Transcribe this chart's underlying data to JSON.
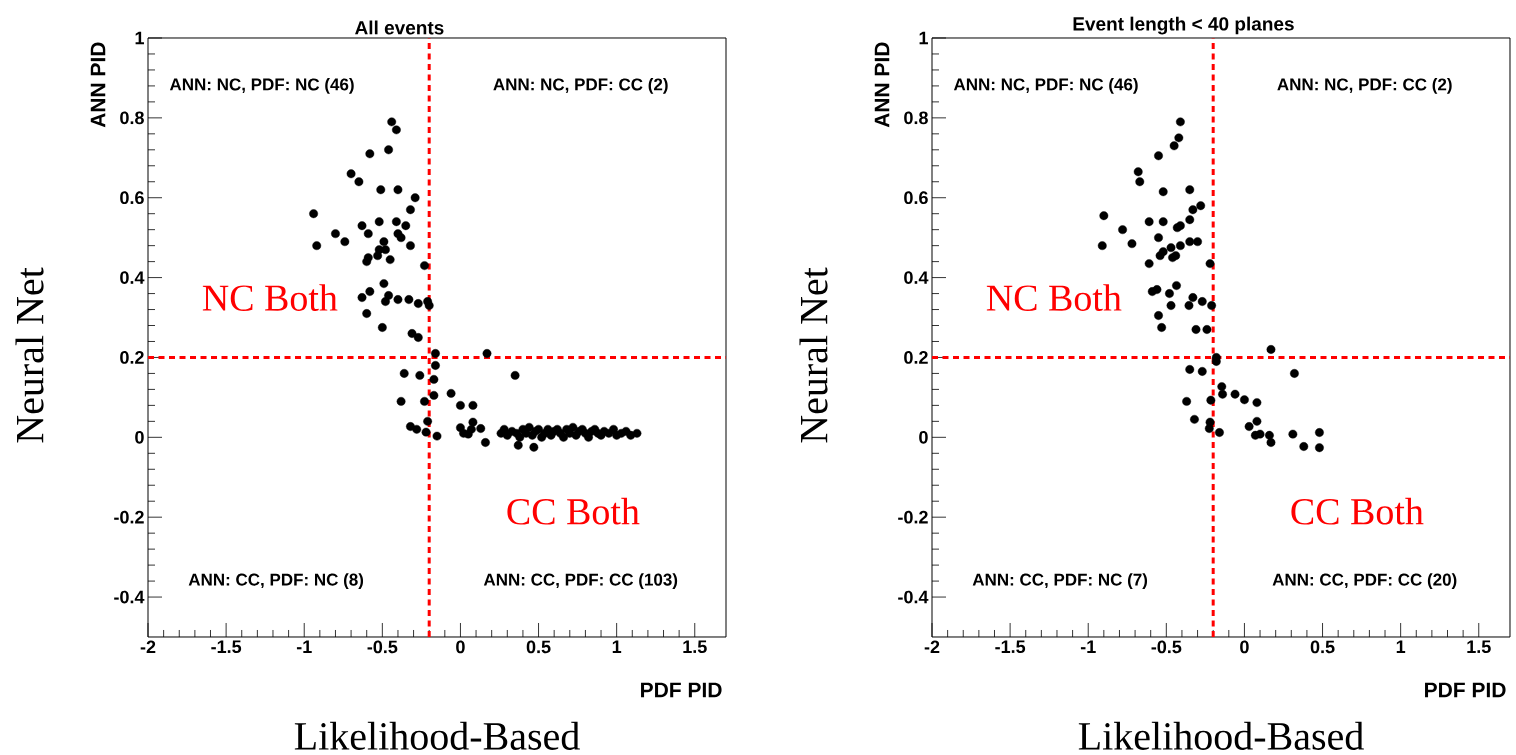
{
  "chart_data": [
    {
      "type": "scatter",
      "title": "All events",
      "xlabel": "PDF PID",
      "ylabel": "ANN PID",
      "color": "#000000",
      "marker": "circle",
      "xlim": [
        -2,
        1.7
      ],
      "ylim": [
        -0.5,
        1
      ],
      "xticks": [
        -2,
        -1.5,
        -1,
        -0.5,
        0,
        0.5,
        1,
        1.5
      ],
      "yticks": [
        -0.4,
        -0.2,
        0,
        0.2,
        0.4,
        0.6,
        0.8,
        1
      ],
      "ref_lines": [
        {
          "axis": "x",
          "value": -0.2,
          "color": "#ff0000",
          "line_style": "dashed"
        },
        {
          "axis": "y",
          "value": 0.2,
          "color": "#ff0000",
          "line_style": "dashed"
        }
      ],
      "annotations": [
        "ANN: NC, PDF: NC  (46)",
        "ANN: NC, PDF: CC  (2)",
        "ANN: CC, PDF: NC  (8)",
        "ANN: CC, PDF: CC  (103)",
        "NC Both",
        "CC Both",
        "Neural Net",
        "Likelihood-Based"
      ],
      "x": [
        -0.44,
        -0.41,
        -0.58,
        -0.46,
        -0.7,
        -0.65,
        -0.51,
        -0.4,
        -0.29,
        -0.32,
        -0.94,
        -0.63,
        -0.52,
        -0.41,
        -0.35,
        -0.8,
        -0.59,
        -0.4,
        -0.74,
        -0.49,
        -0.38,
        -0.92,
        -0.32,
        -0.52,
        -0.48,
        -0.59,
        -0.53,
        -0.45,
        -0.6,
        -0.23,
        -0.49,
        -0.58,
        -0.63,
        -0.46,
        -0.48,
        -0.4,
        -0.33,
        -0.27,
        -0.21,
        -0.2,
        -0.6,
        -0.5,
        -0.31,
        -0.27,
        -0.16,
        0.17,
        -0.16,
        -0.36,
        -0.26,
        -0.17,
        -0.17,
        -0.06,
        -0.38,
        -0.23,
        0.0,
        0.08,
        -0.21,
        -0.32,
        -0.28,
        -0.22,
        -0.15,
        0.35,
        0.0,
        0.08,
        0.13,
        0.05,
        0.07,
        0.02,
        0.16,
        0.26,
        0.28,
        0.3,
        0.33,
        0.36,
        0.38,
        0.4,
        0.42,
        0.44,
        0.46,
        0.48,
        0.5,
        0.52,
        0.54,
        0.56,
        0.58,
        0.6,
        0.62,
        0.64,
        0.66,
        0.68,
        0.7,
        0.72,
        0.74,
        0.76,
        0.78,
        0.8,
        0.82,
        0.84,
        0.86,
        0.88,
        0.9,
        0.92,
        0.95,
        0.98,
        1.0,
        1.03,
        1.06,
        1.09,
        1.13,
        0.37,
        0.47
      ],
      "values": [
        0.79,
        0.77,
        0.71,
        0.72,
        0.66,
        0.64,
        0.62,
        0.62,
        0.6,
        0.57,
        0.56,
        0.53,
        0.54,
        0.54,
        0.53,
        0.51,
        0.51,
        0.51,
        0.49,
        0.49,
        0.5,
        0.48,
        0.48,
        0.47,
        0.47,
        0.45,
        0.455,
        0.445,
        0.44,
        0.43,
        0.385,
        0.365,
        0.35,
        0.355,
        0.34,
        0.345,
        0.345,
        0.335,
        0.34,
        0.33,
        0.31,
        0.275,
        0.26,
        0.25,
        0.21,
        0.21,
        0.18,
        0.16,
        0.155,
        0.145,
        0.105,
        0.11,
        0.09,
        0.09,
        0.08,
        0.08,
        0.04,
        0.027,
        0.02,
        0.013,
        0.003,
        0.155,
        0.024,
        0.038,
        0.022,
        0.008,
        0.02,
        0.01,
        -0.013,
        0.01,
        0.02,
        0.005,
        0.015,
        0.01,
        0.0,
        0.02,
        0.01,
        0.025,
        0.005,
        0.015,
        0.02,
        0.0,
        0.01,
        0.02,
        0.005,
        0.015,
        0.02,
        0.01,
        0.0,
        0.02,
        0.01,
        0.025,
        0.005,
        0.015,
        0.02,
        0.01,
        0.0,
        0.015,
        0.02,
        0.01,
        0.005,
        0.015,
        0.01,
        0.02,
        0.005,
        0.01,
        0.015,
        0.005,
        0.01,
        -0.02,
        -0.025
      ]
    },
    {
      "type": "scatter",
      "title": "Event length < 40 planes",
      "xlabel": "PDF PID",
      "ylabel": "ANN PID",
      "color": "#000000",
      "marker": "circle",
      "xlim": [
        -2,
        1.7
      ],
      "ylim": [
        -0.5,
        1
      ],
      "xticks": [
        -2,
        -1.5,
        -1,
        -0.5,
        0,
        0.5,
        1,
        1.5
      ],
      "yticks": [
        -0.4,
        -0.2,
        0,
        0.2,
        0.4,
        0.6,
        0.8,
        1
      ],
      "ref_lines": [
        {
          "axis": "x",
          "value": -0.2,
          "color": "#ff0000",
          "line_style": "dashed"
        },
        {
          "axis": "y",
          "value": 0.2,
          "color": "#ff0000",
          "line_style": "dashed"
        }
      ],
      "annotations": [
        "ANN: NC, PDF: NC  (46)",
        "ANN: NC, PDF: CC  (2)",
        "ANN: CC, PDF: NC  (7)",
        "ANN: CC, PDF: CC  (20)",
        "NC Both",
        "CC Both",
        "Neural Net",
        "Likelihood-Based"
      ],
      "x": [
        -0.41,
        -0.42,
        -0.45,
        -0.55,
        -0.68,
        -0.67,
        -0.52,
        -0.35,
        -0.9,
        -0.28,
        -0.33,
        -0.61,
        -0.52,
        -0.35,
        -0.41,
        -0.43,
        -0.78,
        -0.55,
        -0.72,
        -0.91,
        -0.41,
        -0.35,
        -0.3,
        -0.47,
        -0.52,
        -0.44,
        -0.54,
        -0.46,
        -0.61,
        -0.22,
        -0.435,
        -0.56,
        -0.59,
        -0.48,
        -0.33,
        -0.27,
        -0.355,
        -0.21,
        -0.47,
        -0.55,
        -0.53,
        -0.31,
        -0.24,
        0.17,
        -0.18,
        -0.18,
        -0.35,
        -0.27,
        0.32,
        -0.145,
        -0.14,
        -0.06,
        0.0,
        0.08,
        -0.215,
        -0.22,
        -0.225,
        -0.16,
        0.08,
        0.03,
        0.07,
        0.1,
        0.16,
        0.17,
        0.31,
        0.38,
        0.48,
        0.48,
        -0.37,
        -0.32
      ],
      "values": [
        0.79,
        0.75,
        0.73,
        0.705,
        0.665,
        0.64,
        0.615,
        0.62,
        0.555,
        0.58,
        0.57,
        0.54,
        0.54,
        0.545,
        0.53,
        0.525,
        0.52,
        0.5,
        0.485,
        0.48,
        0.48,
        0.49,
        0.49,
        0.475,
        0.465,
        0.455,
        0.455,
        0.45,
        0.435,
        0.435,
        0.38,
        0.37,
        0.365,
        0.36,
        0.35,
        0.34,
        0.33,
        0.33,
        0.33,
        0.305,
        0.275,
        0.27,
        0.27,
        0.22,
        0.2,
        0.19,
        0.17,
        0.165,
        0.16,
        0.127,
        0.108,
        0.108,
        0.094,
        0.087,
        0.093,
        0.038,
        0.022,
        0.012,
        0.04,
        0.027,
        0.005,
        0.008,
        0.005,
        -0.013,
        0.008,
        -0.023,
        0.012,
        -0.026,
        0.09,
        0.045
      ]
    }
  ]
}
